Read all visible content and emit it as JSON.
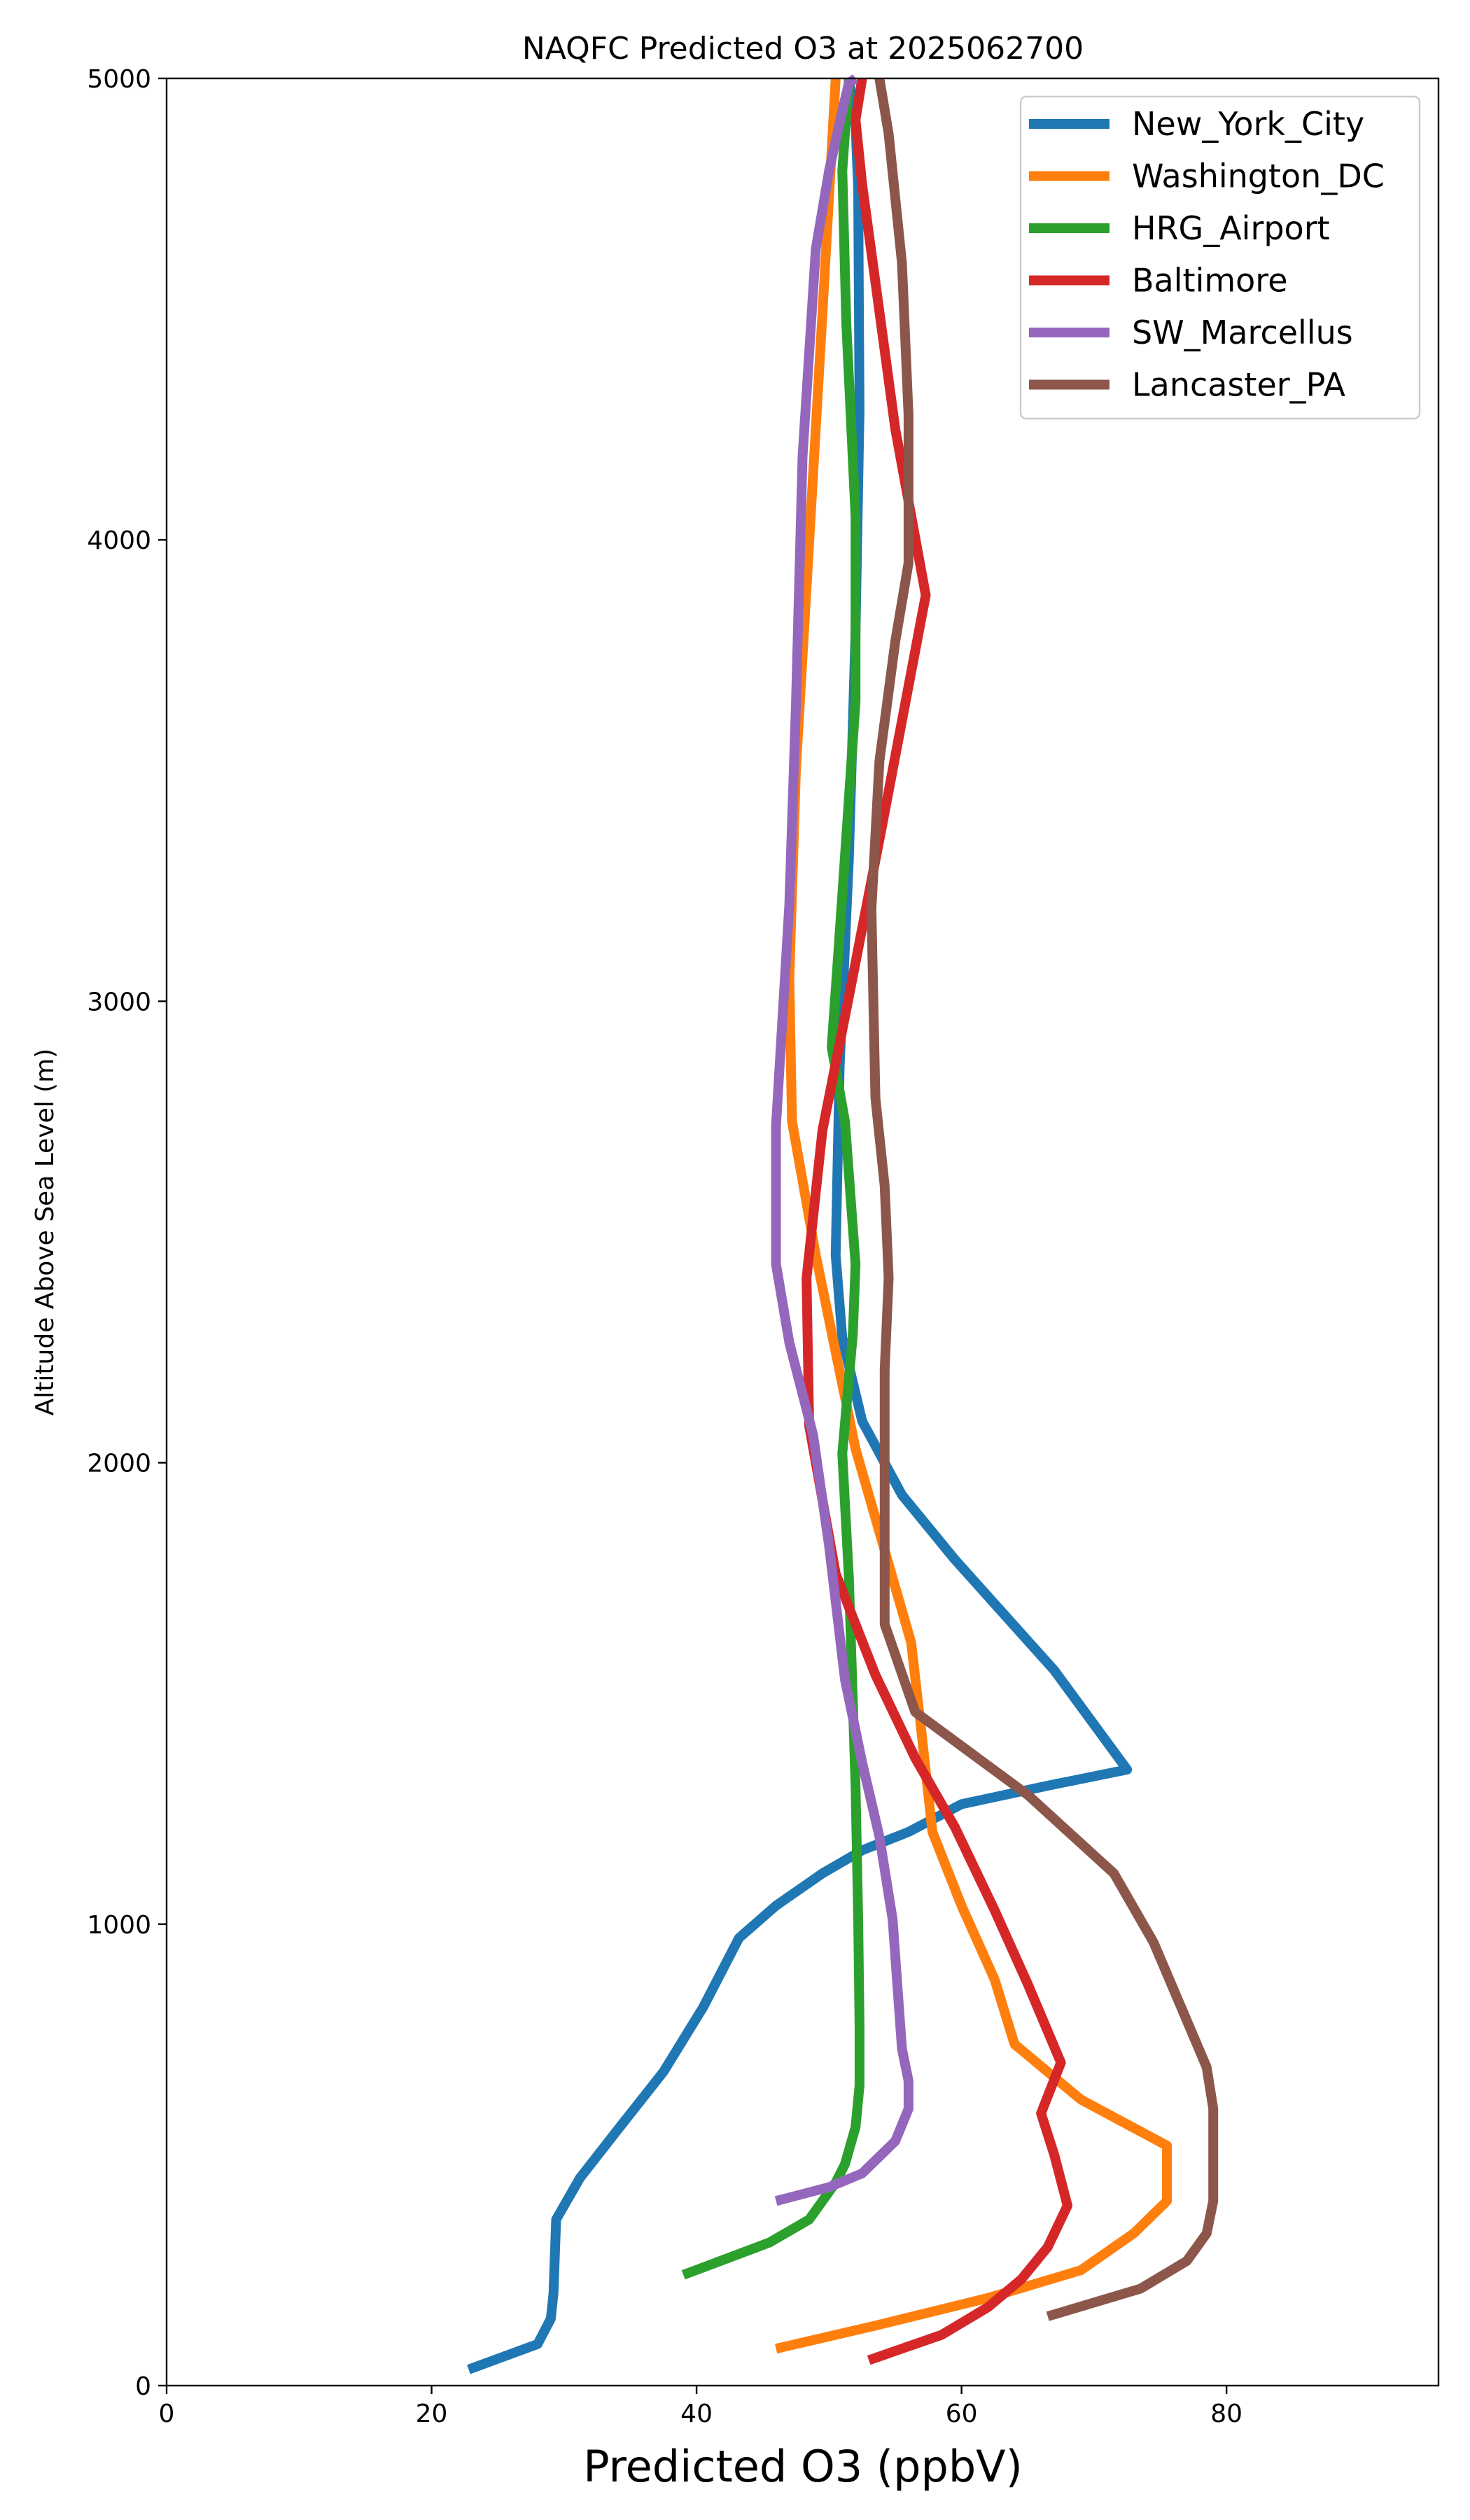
{
  "chart_data": {
    "type": "line",
    "title": "NAQFC Predicted O3 at 2025062700",
    "xlabel": "Predicted O3 (ppbV)",
    "ylabel": "Altitude Above Sea Level (m)",
    "xlim": [
      0,
      96
    ],
    "ylim": [
      0,
      5000
    ],
    "xticks": [
      0,
      20,
      40,
      60,
      80
    ],
    "yticks": [
      0,
      1000,
      2000,
      3000,
      4000,
      5000
    ],
    "xtick_labels": [
      "0",
      "20",
      "40",
      "60",
      "80"
    ],
    "ytick_labels": [
      "0",
      "1000",
      "2000",
      "3000",
      "4000",
      "5000"
    ],
    "grid": false,
    "legend_position": "top-right",
    "series": [
      {
        "name": "New_York_City",
        "color": "#1f77b4",
        "x": [
          22.8,
          28.0,
          29.0,
          29.2,
          29.4,
          31.2,
          34.2,
          37.5,
          40.5,
          43.2,
          46.0,
          49.5,
          52.5,
          56.0,
          60.0,
          66.5,
          72.5,
          67.0,
          59.5,
          55.5,
          52.5,
          51.0,
          50.5,
          50.8,
          51.5,
          52.0,
          52.3,
          52.2,
          52.0,
          51.5
        ],
        "y": [
          35,
          90,
          145,
          200,
          360,
          450,
          560,
          680,
          820,
          970,
          1040,
          1110,
          1160,
          1200,
          1260,
          1300,
          1335,
          1550,
          1790,
          1930,
          2090,
          2270,
          2450,
          2860,
          3310,
          3800,
          4280,
          4760,
          4900,
          5000
        ]
      },
      {
        "name": "Washington_DC",
        "color": "#ff7f0e",
        "x": [
          46.0,
          53.5,
          62.0,
          69.0,
          73.0,
          75.5,
          75.5,
          69.0,
          64.0,
          62.5,
          60.0,
          57.8,
          57.0,
          56.2,
          52.0,
          49.0,
          47.2,
          47.0,
          47.5,
          49.5,
          50.5
        ],
        "y": [
          80,
          130,
          190,
          250,
          330,
          400,
          520,
          620,
          740,
          880,
          1040,
          1200,
          1410,
          1610,
          2030,
          2450,
          2740,
          3050,
          3500,
          4490,
          5000
        ]
      },
      {
        "name": "HRG_Airport",
        "color": "#2ca02c",
        "x": [
          39.0,
          45.5,
          48.5,
          50.5,
          51.2,
          52.0,
          52.3,
          52.3,
          52.2,
          52.0,
          51.5,
          51.0,
          51.8,
          52.0,
          51.2,
          50.2,
          51.0,
          52.0,
          52.0,
          51.3,
          51.0,
          51.5
        ],
        "y": [
          240,
          310,
          360,
          440,
          480,
          560,
          650,
          780,
          1010,
          1300,
          1750,
          2020,
          2280,
          2430,
          2740,
          2900,
          3230,
          3650,
          4050,
          4470,
          4800,
          5000
        ]
      },
      {
        "name": "Baltimore",
        "color": "#d62728",
        "x": [
          53.0,
          58.5,
          62.0,
          64.5,
          66.5,
          68.0,
          67.0,
          66.0,
          67.5,
          65.0,
          62.5,
          59.5,
          56.5,
          53.5,
          50.5,
          48.5,
          48.3,
          49.5,
          51.5,
          54.0,
          57.3,
          55.0,
          52.5,
          52.0,
          52.5
        ],
        "y": [
          55,
          110,
          170,
          230,
          300,
          390,
          500,
          590,
          700,
          870,
          1030,
          1210,
          1360,
          1540,
          1760,
          2080,
          2400,
          2720,
          3010,
          3380,
          3880,
          4240,
          4770,
          4910,
          5000
        ]
      },
      {
        "name": "SW_Marcellus",
        "color": "#9467bd",
        "x": [
          46.0,
          50.0,
          52.5,
          55.0,
          56.0,
          56.0,
          55.5,
          54.8,
          53.8,
          52.5,
          51.2,
          50.0,
          48.8,
          47.0,
          46.0,
          46.0,
          47.0,
          47.5,
          48.0,
          49.0,
          50.0,
          51.0,
          51.5,
          52.0
        ],
        "y": [
          400,
          430,
          460,
          530,
          600,
          660,
          730,
          1010,
          1190,
          1350,
          1530,
          1820,
          2060,
          2260,
          2430,
          2730,
          3210,
          3640,
          4180,
          4630,
          4800,
          4930,
          4990,
          5000
        ]
      },
      {
        "name": "Lancaster_PA",
        "color": "#8c564b",
        "x": [
          66.5,
          73.5,
          77.0,
          78.5,
          79.0,
          79.0,
          79.0,
          78.5,
          74.5,
          71.5,
          65.0,
          56.5,
          54.2,
          54.2,
          54.2,
          54.5,
          54.2,
          53.5,
          53.2,
          53.8,
          55.0,
          56.0,
          56.0,
          55.5,
          54.5,
          53.8
        ],
        "y": [
          150,
          210,
          270,
          330,
          400,
          510,
          600,
          690,
          960,
          1110,
          1280,
          1460,
          1650,
          1930,
          2200,
          2400,
          2600,
          2790,
          3200,
          3520,
          3780,
          3950,
          4270,
          4600,
          4880,
          5000
        ]
      }
    ]
  }
}
